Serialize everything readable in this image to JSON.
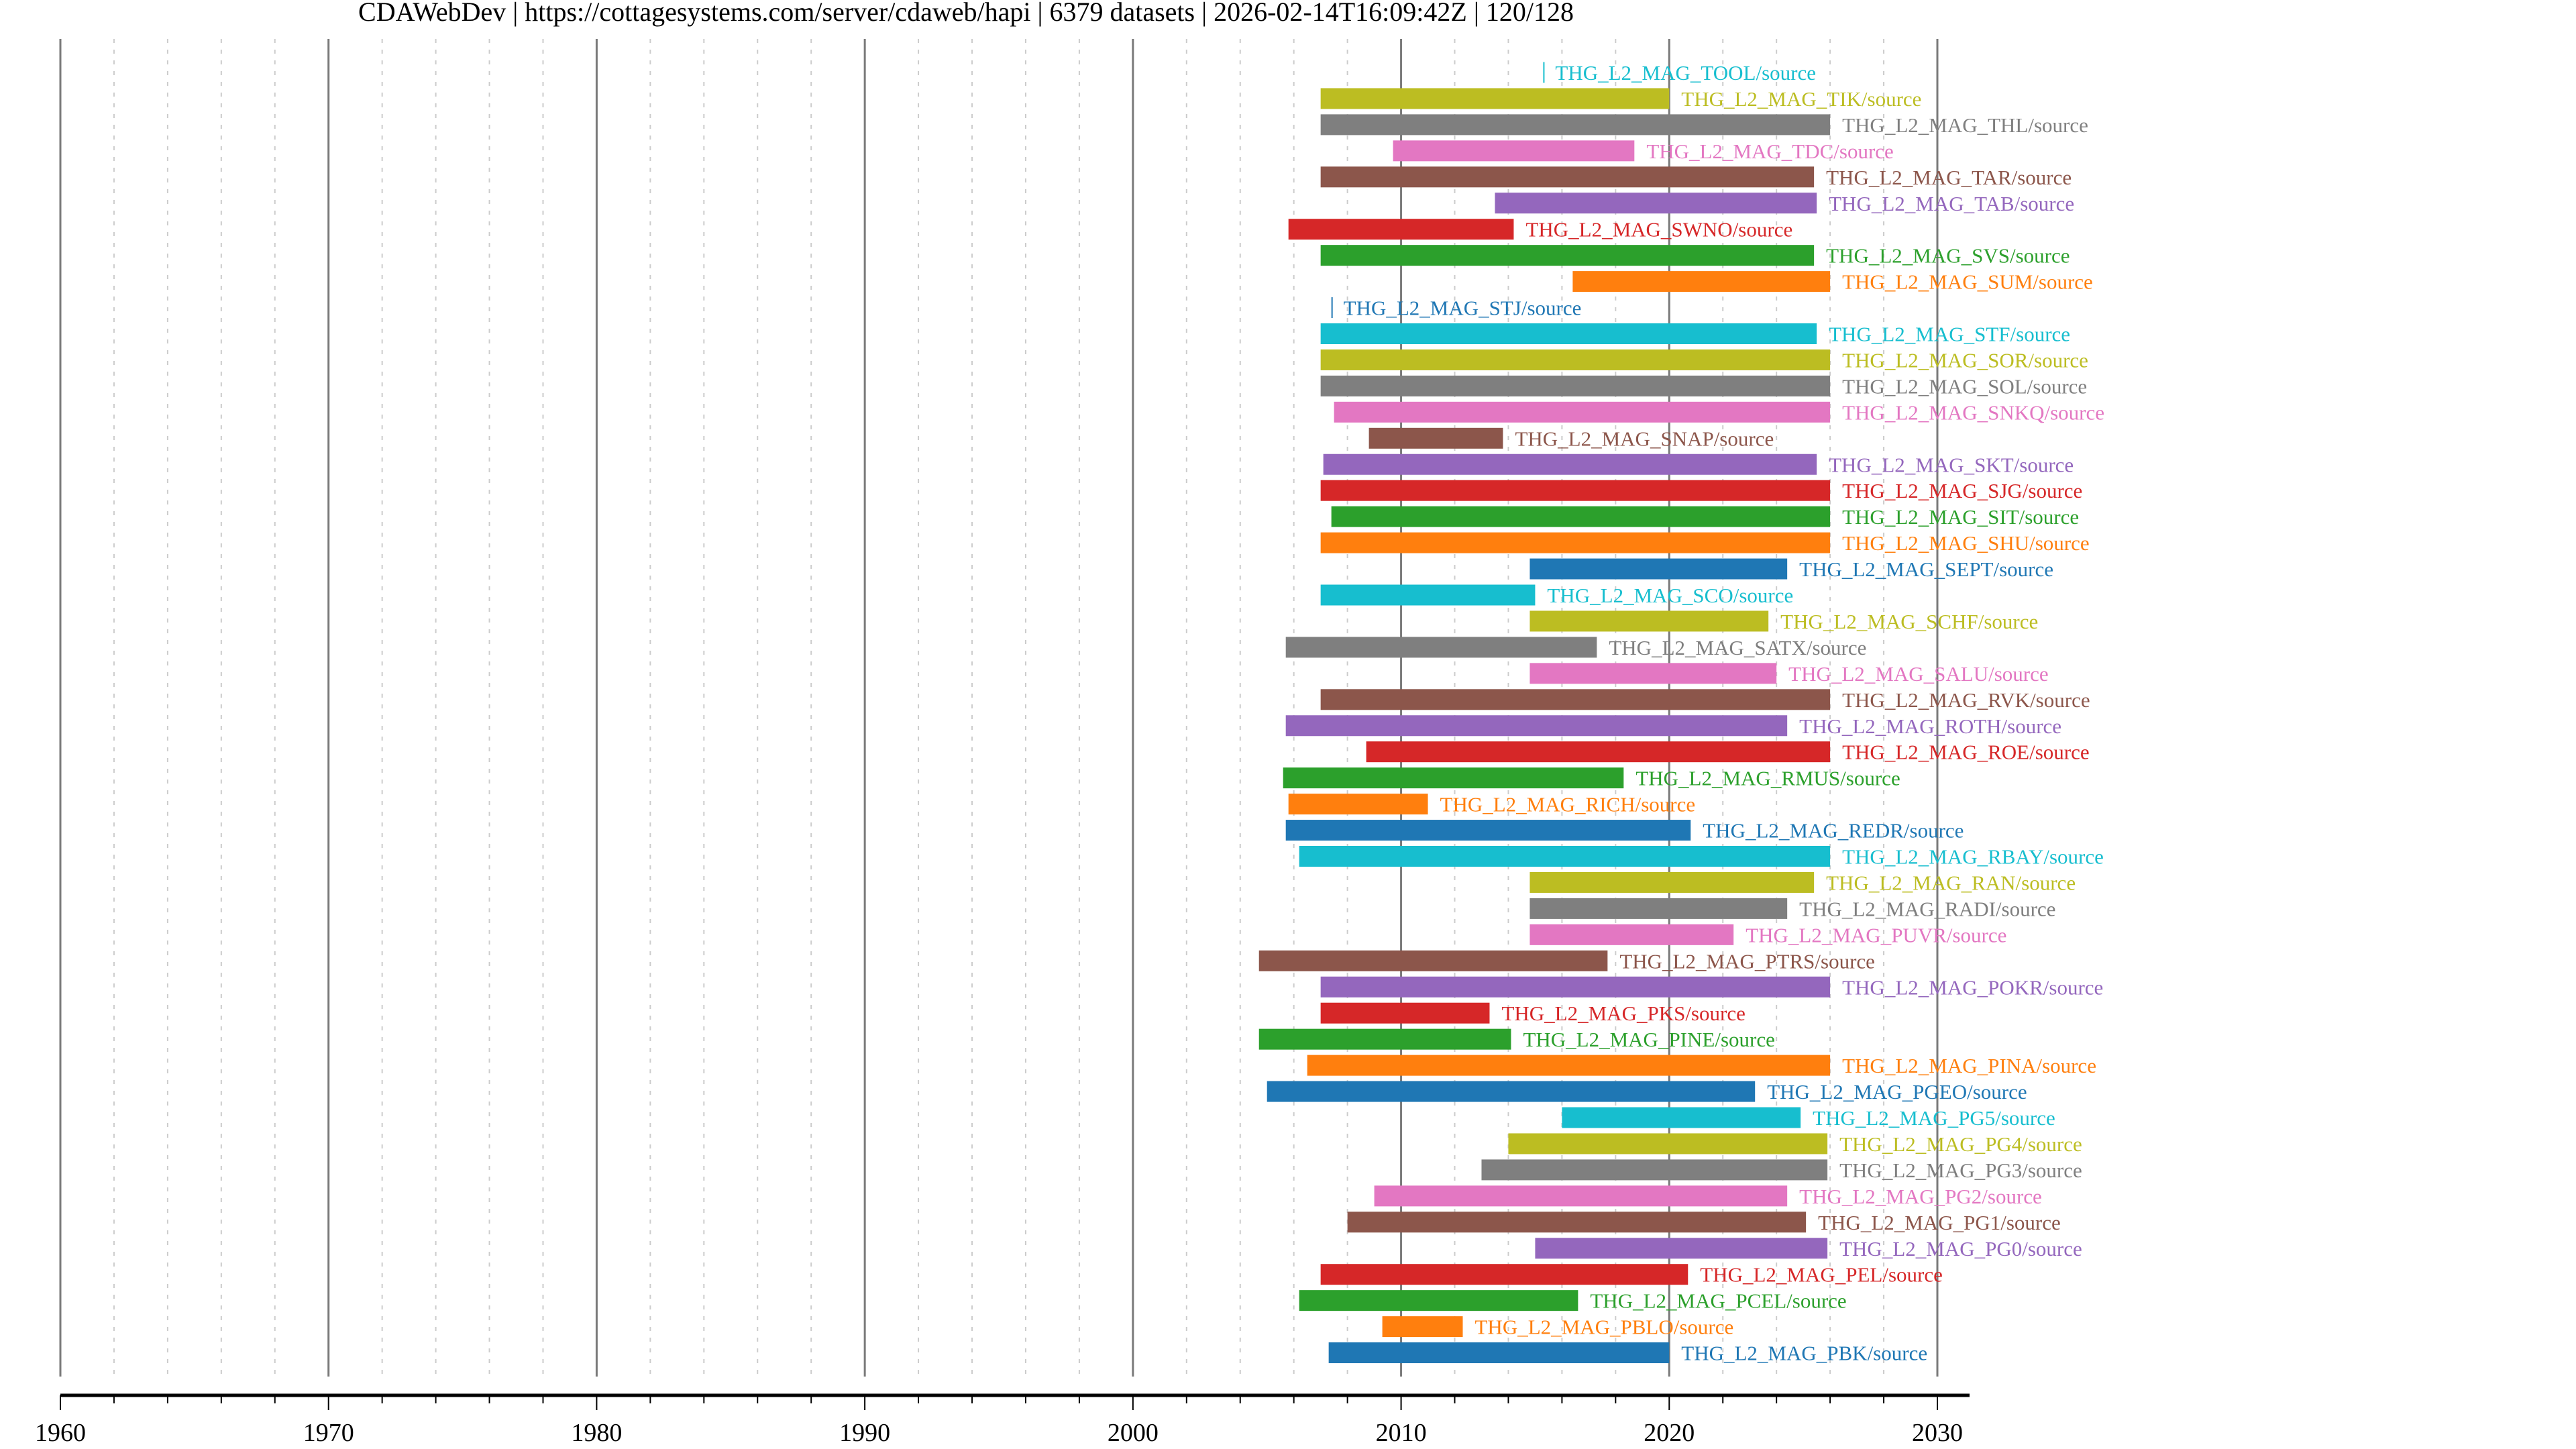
{
  "title": "CDAWebDev | https://cottagesystems.com/server/cdaweb/hapi | 6379 datasets | 2026-02-14T16:09:42Z | 120/128",
  "chart_data": {
    "type": "timeline",
    "title": "CDAWebDev | https://cottagesystems.com/server/cdaweb/hapi | 6379 datasets | 2026-02-14T16:09:42Z | 120/128",
    "xlabel": "",
    "ylabel": "",
    "xlim": [
      1960,
      2031.2
    ],
    "xticks": [
      "1960",
      "1970",
      "1980",
      "1990",
      "2000",
      "2010",
      "2020",
      "2030"
    ],
    "grid": "major solid, minor dashed (2-year)",
    "series": [
      {
        "name": "THG_L2_MAG_TOOL/source",
        "start": 2015.3,
        "end": 2015.3,
        "color": "#17becf"
      },
      {
        "name": "THG_L2_MAG_TIK/source",
        "start": 2007.0,
        "end": 2020.0,
        "color": "#bcbd22"
      },
      {
        "name": "THG_L2_MAG_THL/source",
        "start": 2007.0,
        "end": 2026.0,
        "color": "#7f7f7f"
      },
      {
        "name": "THG_L2_MAG_TDC/source",
        "start": 2009.7,
        "end": 2018.7,
        "color": "#e377c2"
      },
      {
        "name": "THG_L2_MAG_TAR/source",
        "start": 2007.0,
        "end": 2025.4,
        "color": "#8c564b"
      },
      {
        "name": "THG_L2_MAG_TAB/source",
        "start": 2013.5,
        "end": 2025.5,
        "color": "#9467bd"
      },
      {
        "name": "THG_L2_MAG_SWNO/source",
        "start": 2005.8,
        "end": 2014.2,
        "color": "#d62728"
      },
      {
        "name": "THG_L2_MAG_SVS/source",
        "start": 2007.0,
        "end": 2025.4,
        "color": "#2ca02c"
      },
      {
        "name": "THG_L2_MAG_SUM/source",
        "start": 2016.4,
        "end": 2026.0,
        "color": "#ff7f0e"
      },
      {
        "name": "THG_L2_MAG_STJ/source",
        "start": 2007.4,
        "end": 2007.4,
        "color": "#1f77b4"
      },
      {
        "name": "THG_L2_MAG_STF/source",
        "start": 2007.0,
        "end": 2025.5,
        "color": "#17becf"
      },
      {
        "name": "THG_L2_MAG_SOR/source",
        "start": 2007.0,
        "end": 2026.0,
        "color": "#bcbd22"
      },
      {
        "name": "THG_L2_MAG_SOL/source",
        "start": 2007.0,
        "end": 2026.0,
        "color": "#7f7f7f"
      },
      {
        "name": "THG_L2_MAG_SNKQ/source",
        "start": 2007.5,
        "end": 2026.0,
        "color": "#e377c2"
      },
      {
        "name": "THG_L2_MAG_SNAP/source",
        "start": 2008.8,
        "end": 2013.8,
        "color": "#8c564b"
      },
      {
        "name": "THG_L2_MAG_SKT/source",
        "start": 2007.1,
        "end": 2025.5,
        "color": "#9467bd"
      },
      {
        "name": "THG_L2_MAG_SJG/source",
        "start": 2007.0,
        "end": 2026.0,
        "color": "#d62728"
      },
      {
        "name": "THG_L2_MAG_SIT/source",
        "start": 2007.4,
        "end": 2026.0,
        "color": "#2ca02c"
      },
      {
        "name": "THG_L2_MAG_SHU/source",
        "start": 2007.0,
        "end": 2026.0,
        "color": "#ff7f0e"
      },
      {
        "name": "THG_L2_MAG_SEPT/source",
        "start": 2014.8,
        "end": 2024.4,
        "color": "#1f77b4"
      },
      {
        "name": "THG_L2_MAG_SCO/source",
        "start": 2007.0,
        "end": 2015.0,
        "color": "#17becf"
      },
      {
        "name": "THG_L2_MAG_SCHF/source",
        "start": 2014.8,
        "end": 2023.7,
        "color": "#bcbd22"
      },
      {
        "name": "THG_L2_MAG_SATX/source",
        "start": 2005.7,
        "end": 2017.3,
        "color": "#7f7f7f"
      },
      {
        "name": "THG_L2_MAG_SALU/source",
        "start": 2014.8,
        "end": 2024.0,
        "color": "#e377c2"
      },
      {
        "name": "THG_L2_MAG_RVK/source",
        "start": 2007.0,
        "end": 2026.0,
        "color": "#8c564b"
      },
      {
        "name": "THG_L2_MAG_ROTH/source",
        "start": 2005.7,
        "end": 2024.4,
        "color": "#9467bd"
      },
      {
        "name": "THG_L2_MAG_ROE/source",
        "start": 2008.7,
        "end": 2026.0,
        "color": "#d62728"
      },
      {
        "name": "THG_L2_MAG_RMUS/source",
        "start": 2005.6,
        "end": 2018.3,
        "color": "#2ca02c"
      },
      {
        "name": "THG_L2_MAG_RICH/source",
        "start": 2005.8,
        "end": 2011.0,
        "color": "#ff7f0e"
      },
      {
        "name": "THG_L2_MAG_REDR/source",
        "start": 2005.7,
        "end": 2020.8,
        "color": "#1f77b4"
      },
      {
        "name": "THG_L2_MAG_RBAY/source",
        "start": 2006.2,
        "end": 2026.0,
        "color": "#17becf"
      },
      {
        "name": "THG_L2_MAG_RAN/source",
        "start": 2014.8,
        "end": 2025.4,
        "color": "#bcbd22"
      },
      {
        "name": "THG_L2_MAG_RADI/source",
        "start": 2014.8,
        "end": 2024.4,
        "color": "#7f7f7f"
      },
      {
        "name": "THG_L2_MAG_PUVR/source",
        "start": 2014.8,
        "end": 2022.4,
        "color": "#e377c2"
      },
      {
        "name": "THG_L2_MAG_PTRS/source",
        "start": 2004.7,
        "end": 2017.7,
        "color": "#8c564b"
      },
      {
        "name": "THG_L2_MAG_POKR/source",
        "start": 2007.0,
        "end": 2026.0,
        "color": "#9467bd"
      },
      {
        "name": "THG_L2_MAG_PKS/source",
        "start": 2007.0,
        "end": 2013.3,
        "color": "#d62728"
      },
      {
        "name": "THG_L2_MAG_PINE/source",
        "start": 2004.7,
        "end": 2014.1,
        "color": "#2ca02c"
      },
      {
        "name": "THG_L2_MAG_PINA/source",
        "start": 2006.5,
        "end": 2026.0,
        "color": "#ff7f0e"
      },
      {
        "name": "THG_L2_MAG_PGEO/source",
        "start": 2005.0,
        "end": 2023.2,
        "color": "#1f77b4"
      },
      {
        "name": "THG_L2_MAG_PG5/source",
        "start": 2016.0,
        "end": 2024.9,
        "color": "#17becf"
      },
      {
        "name": "THG_L2_MAG_PG4/source",
        "start": 2014.0,
        "end": 2025.9,
        "color": "#bcbd22"
      },
      {
        "name": "THG_L2_MAG_PG3/source",
        "start": 2013.0,
        "end": 2025.9,
        "color": "#7f7f7f"
      },
      {
        "name": "THG_L2_MAG_PG2/source",
        "start": 2009.0,
        "end": 2024.4,
        "color": "#e377c2"
      },
      {
        "name": "THG_L2_MAG_PG1/source",
        "start": 2008.0,
        "end": 2025.1,
        "color": "#8c564b"
      },
      {
        "name": "THG_L2_MAG_PG0/source",
        "start": 2015.0,
        "end": 2025.9,
        "color": "#9467bd"
      },
      {
        "name": "THG_L2_MAG_PEL/source",
        "start": 2007.0,
        "end": 2020.7,
        "color": "#d62728"
      },
      {
        "name": "THG_L2_MAG_PCEL/source",
        "start": 2006.2,
        "end": 2016.6,
        "color": "#2ca02c"
      },
      {
        "name": "THG_L2_MAG_PBLO/source",
        "start": 2009.3,
        "end": 2012.3,
        "color": "#ff7f0e"
      },
      {
        "name": "THG_L2_MAG_PBK/source",
        "start": 2007.3,
        "end": 2020.0,
        "color": "#1f77b4"
      }
    ]
  }
}
